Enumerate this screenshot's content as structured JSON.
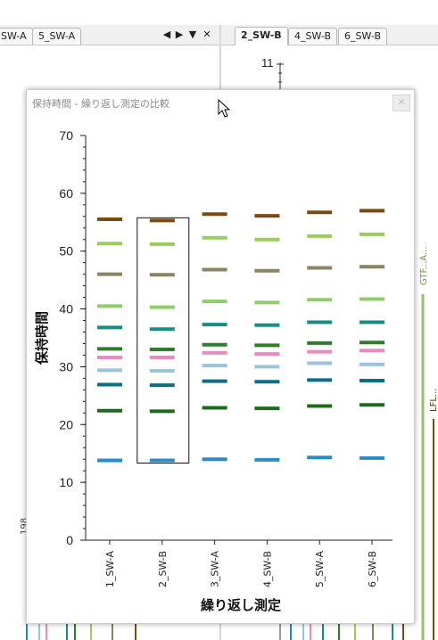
{
  "tabs_left": {
    "items": [
      {
        "label": "SW-A"
      },
      {
        "label": "5_SW-A"
      }
    ],
    "controls": {
      "prev": "◀",
      "next": "▶",
      "menu": "▼",
      "close": "✕"
    }
  },
  "tabs_right": {
    "items": [
      {
        "label": "2_SW-B"
      },
      {
        "label": "4_SW-B"
      },
      {
        "label": "6_SW-B"
      }
    ]
  },
  "background": {
    "axis_top_label": "11",
    "right_trace_labels": [
      "GTF...A...",
      "LFL..."
    ],
    "left_fragment": "198"
  },
  "dialog": {
    "title": "保持時間 - 繰り返し測定の比較",
    "close_label": "×"
  },
  "chart_data": {
    "type": "scatter",
    "xlabel": "繰り返し測定",
    "ylabel": "保持時間",
    "ylim": [
      0,
      70
    ],
    "yticks": [
      0,
      10,
      20,
      30,
      40,
      50,
      60,
      70
    ],
    "categories": [
      "1_SW-A",
      "2_SW-B",
      "3_SW-A",
      "4_SW-B",
      "5_SW-A",
      "6_SW-B"
    ],
    "selected_category": "2_SW-B",
    "colors": {
      "peak_55": "#7a4a0e",
      "peak_51": "#9ccc5a",
      "peak_46": "#8b8462",
      "peak_40": "#8fcc6c",
      "peak_36": "#1a8c86",
      "peak_33": "#2d7d2d",
      "peak_31": "#e98ac0",
      "peak_29": "#9cc3dc",
      "peak_27": "#0f6c85",
      "peak_22": "#1e6b1e",
      "peak_14": "#2a8cc4"
    },
    "series": [
      {
        "color_key": "peak_55",
        "values": [
          55.5,
          55.3,
          56.4,
          56.1,
          56.7,
          57.0
        ]
      },
      {
        "color_key": "peak_51",
        "values": [
          51.3,
          51.2,
          52.3,
          52.0,
          52.6,
          52.9
        ]
      },
      {
        "color_key": "peak_46",
        "values": [
          46.0,
          45.9,
          46.8,
          46.6,
          47.1,
          47.3
        ]
      },
      {
        "color_key": "peak_40",
        "values": [
          40.5,
          40.3,
          41.3,
          41.1,
          41.6,
          41.7
        ]
      },
      {
        "color_key": "peak_36",
        "values": [
          36.8,
          36.5,
          37.3,
          37.2,
          37.7,
          37.7
        ]
      },
      {
        "color_key": "peak_33",
        "values": [
          33.1,
          33.0,
          33.8,
          33.7,
          34.1,
          34.2
        ]
      },
      {
        "color_key": "peak_31",
        "values": [
          31.6,
          31.6,
          32.4,
          32.2,
          32.6,
          32.8
        ]
      },
      {
        "color_key": "peak_29",
        "values": [
          29.4,
          29.3,
          30.2,
          30.0,
          30.6,
          30.4
        ]
      },
      {
        "color_key": "peak_27",
        "values": [
          26.9,
          26.8,
          27.5,
          27.4,
          27.7,
          27.6
        ]
      },
      {
        "color_key": "peak_22",
        "values": [
          22.4,
          22.3,
          22.9,
          22.8,
          23.2,
          23.4
        ]
      },
      {
        "color_key": "peak_14",
        "values": [
          13.8,
          13.8,
          14.0,
          13.9,
          14.3,
          14.2
        ]
      }
    ]
  }
}
